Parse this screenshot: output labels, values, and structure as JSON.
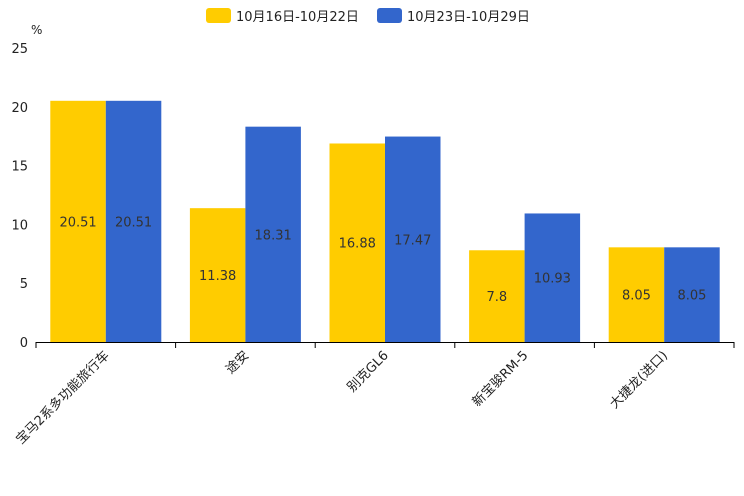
{
  "chart_data": {
    "type": "bar",
    "title": "",
    "ylabel": "%",
    "xlabel": "",
    "ylim": [
      0,
      25
    ],
    "yticks": [
      0,
      5,
      10,
      15,
      20,
      25
    ],
    "grid": false,
    "legend_position": "top-center",
    "categories": [
      "宝马2系多功能旅行车",
      "途安",
      "别克GL6",
      "新宝骏RM-5",
      "大捷龙(进口)"
    ],
    "series": [
      {
        "name": "10月16日-10月22日",
        "color": "#FFCC00",
        "values": [
          20.51,
          11.38,
          16.88,
          7.8,
          8.05
        ]
      },
      {
        "name": "10月23日-10月29日",
        "color": "#3366CC",
        "values": [
          20.51,
          18.31,
          17.47,
          10.93,
          8.05
        ]
      }
    ]
  }
}
